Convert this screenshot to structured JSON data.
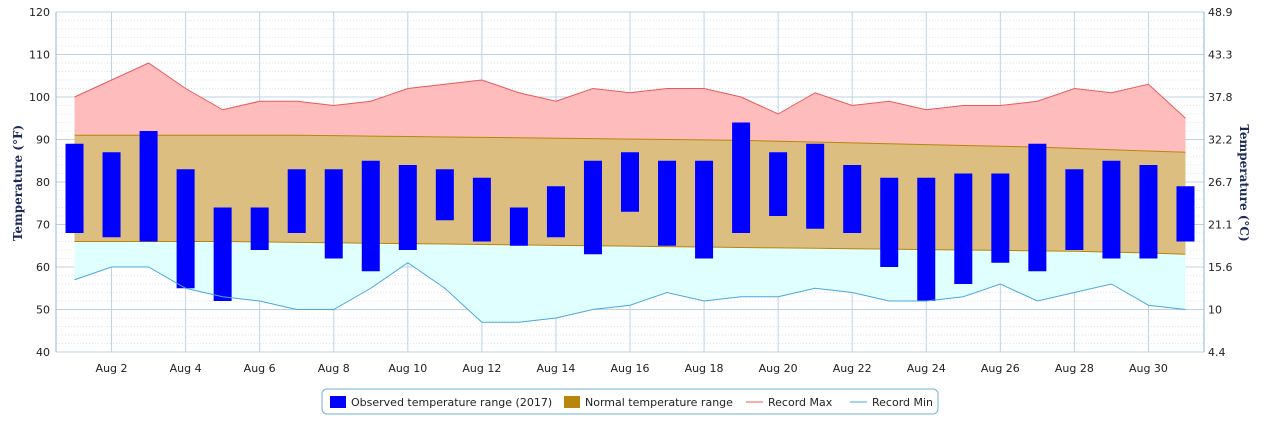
{
  "chart_data": {
    "type": "bar",
    "x_categories": [
      "Aug 2",
      "Aug 4",
      "Aug 6",
      "Aug 8",
      "Aug 10",
      "Aug 12",
      "Aug 14",
      "Aug 16",
      "Aug 18",
      "Aug 20",
      "Aug 22",
      "Aug 24",
      "Aug 26",
      "Aug 28",
      "Aug 30"
    ],
    "days": [
      1,
      2,
      3,
      4,
      5,
      6,
      7,
      8,
      9,
      10,
      11,
      12,
      13,
      14,
      15,
      16,
      17,
      18,
      19,
      20,
      21,
      22,
      23,
      24,
      25,
      26,
      27,
      28,
      29,
      30,
      31
    ],
    "yaxis_left": {
      "label": "Temperature (°F)",
      "range": [
        40,
        120
      ],
      "ticks": [
        "40",
        "50",
        "60",
        "70",
        "80",
        "90",
        "100",
        "110",
        "120"
      ]
    },
    "yaxis_right": {
      "label": "Temperature (°C)",
      "ticks": [
        "4.4",
        "10",
        "15.6",
        "21.1",
        "26.7",
        "32.2",
        "37.8",
        "43.3",
        "48.9"
      ]
    },
    "series": [
      {
        "name": "Observed temperature range (2017)",
        "color": "#0000ff",
        "low": [
          68,
          67,
          66,
          55,
          52,
          64,
          68,
          62,
          59,
          64,
          71,
          66,
          65,
          67,
          63,
          73,
          65,
          62,
          68,
          72,
          69,
          68,
          60,
          52,
          56,
          61,
          59,
          64,
          62,
          62,
          66
        ],
        "high": [
          89,
          87,
          92,
          83,
          74,
          74,
          83,
          83,
          85,
          84,
          83,
          81,
          74,
          79,
          85,
          87,
          85,
          85,
          94,
          87,
          89,
          84,
          81,
          81,
          82,
          82,
          89,
          83,
          85,
          84,
          79
        ]
      },
      {
        "name": "Normal temperature range",
        "color": "#b8860b",
        "low": [
          66,
          66,
          66,
          66,
          66,
          65.9,
          65.8,
          65.7,
          65.6,
          65.5,
          65.4,
          65.3,
          65.2,
          65.1,
          65,
          64.9,
          64.8,
          64.7,
          64.6,
          64.5,
          64.4,
          64.3,
          64.2,
          64.1,
          64,
          63.9,
          63.8,
          63.7,
          63.5,
          63.3,
          63
        ],
        "high": [
          91,
          91,
          91,
          91,
          91,
          91,
          91,
          90.9,
          90.8,
          90.7,
          90.6,
          90.5,
          90.4,
          90.3,
          90.2,
          90.1,
          90,
          89.9,
          89.8,
          89.6,
          89.4,
          89.2,
          89,
          88.8,
          88.6,
          88.4,
          88.2,
          87.9,
          87.6,
          87.3,
          87
        ]
      },
      {
        "name": "Record Max",
        "color": "#e85a5a",
        "values": [
          100,
          104,
          108,
          102,
          97,
          99,
          99,
          98,
          99,
          102,
          103,
          104,
          101,
          99,
          102,
          101,
          102,
          102,
          100,
          96,
          101,
          98,
          99,
          97,
          98,
          98,
          99,
          102,
          101,
          103,
          95
        ]
      },
      {
        "name": "Record Min",
        "color": "#4aa8e0",
        "values": [
          57,
          60,
          60,
          55,
          53,
          52,
          50,
          50,
          55,
          61,
          55,
          47,
          47,
          48,
          50,
          51,
          54,
          52,
          53,
          53,
          55,
          54,
          52,
          52,
          53,
          56,
          52,
          54,
          56,
          51,
          50
        ]
      }
    ],
    "legend": {
      "placement": "bottom-center"
    },
    "grid": true
  }
}
